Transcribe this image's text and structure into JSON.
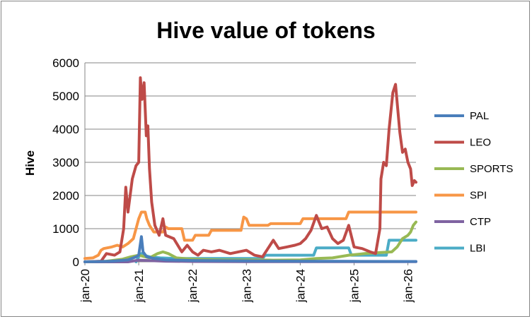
{
  "chart_data": {
    "type": "line",
    "title": "Hive value of tokens",
    "ylabel": "Hive",
    "xlabel": "",
    "ylim": [
      0,
      6000
    ],
    "y_ticks": [
      "0",
      "1000",
      "2000",
      "3000",
      "4000",
      "5000",
      "6000"
    ],
    "x_ticks": [
      "jan-20",
      "jan-21",
      "jan-22",
      "jan-23",
      "jan-24",
      "jan-25",
      "jan-26"
    ],
    "xlim": [
      2020.0,
      2026.15
    ],
    "grid": "horizontal",
    "legend_position": "right",
    "series": [
      {
        "name": "PAL",
        "color": "#4a7ebb",
        "points": [
          [
            2020.0,
            0
          ],
          [
            2020.5,
            20
          ],
          [
            2020.8,
            60
          ],
          [
            2020.95,
            150
          ],
          [
            2021.0,
            200
          ],
          [
            2021.05,
            760
          ],
          [
            2021.08,
            300
          ],
          [
            2021.15,
            150
          ],
          [
            2021.3,
            100
          ],
          [
            2021.5,
            60
          ],
          [
            2022.0,
            40
          ],
          [
            2023.0,
            30
          ],
          [
            2024.0,
            20
          ],
          [
            2025.0,
            15
          ],
          [
            2026.0,
            10
          ],
          [
            2026.15,
            10
          ]
        ]
      },
      {
        "name": "LEO",
        "color": "#be4b48",
        "points": [
          [
            2020.0,
            0
          ],
          [
            2020.3,
            20
          ],
          [
            2020.4,
            250
          ],
          [
            2020.55,
            200
          ],
          [
            2020.65,
            300
          ],
          [
            2020.72,
            1000
          ],
          [
            2020.76,
            2250
          ],
          [
            2020.8,
            1500
          ],
          [
            2020.88,
            2500
          ],
          [
            2020.95,
            2900
          ],
          [
            2021.0,
            3000
          ],
          [
            2021.03,
            5550
          ],
          [
            2021.06,
            4900
          ],
          [
            2021.1,
            5400
          ],
          [
            2021.14,
            3800
          ],
          [
            2021.17,
            4100
          ],
          [
            2021.2,
            2800
          ],
          [
            2021.24,
            1800
          ],
          [
            2021.3,
            1100
          ],
          [
            2021.38,
            800
          ],
          [
            2021.45,
            1300
          ],
          [
            2021.5,
            800
          ],
          [
            2021.65,
            700
          ],
          [
            2021.8,
            300
          ],
          [
            2021.85,
            400
          ],
          [
            2021.9,
            500
          ],
          [
            2022.0,
            300
          ],
          [
            2022.1,
            200
          ],
          [
            2022.2,
            350
          ],
          [
            2022.35,
            300
          ],
          [
            2022.5,
            350
          ],
          [
            2022.7,
            250
          ],
          [
            2022.85,
            300
          ],
          [
            2023.0,
            350
          ],
          [
            2023.15,
            200
          ],
          [
            2023.3,
            150
          ],
          [
            2023.4,
            400
          ],
          [
            2023.5,
            650
          ],
          [
            2023.6,
            400
          ],
          [
            2023.75,
            450
          ],
          [
            2023.9,
            500
          ],
          [
            2024.0,
            550
          ],
          [
            2024.1,
            700
          ],
          [
            2024.2,
            950
          ],
          [
            2024.3,
            1400
          ],
          [
            2024.4,
            1000
          ],
          [
            2024.5,
            1050
          ],
          [
            2024.6,
            700
          ],
          [
            2024.7,
            550
          ],
          [
            2024.8,
            650
          ],
          [
            2024.9,
            1100
          ],
          [
            2025.0,
            450
          ],
          [
            2025.15,
            400
          ],
          [
            2025.3,
            300
          ],
          [
            2025.4,
            250
          ],
          [
            2025.48,
            1000
          ],
          [
            2025.5,
            2500
          ],
          [
            2025.55,
            3000
          ],
          [
            2025.6,
            2900
          ],
          [
            2025.65,
            4000
          ],
          [
            2025.72,
            5100
          ],
          [
            2025.77,
            5350
          ],
          [
            2025.8,
            4800
          ],
          [
            2025.85,
            3900
          ],
          [
            2025.9,
            3300
          ],
          [
            2025.95,
            3400
          ],
          [
            2026.0,
            3000
          ],
          [
            2026.05,
            2800
          ],
          [
            2026.08,
            2300
          ],
          [
            2026.12,
            2450
          ],
          [
            2026.15,
            2400
          ]
        ]
      },
      {
        "name": "SPORTS",
        "color": "#98b954",
        "points": [
          [
            2020.0,
            0
          ],
          [
            2020.4,
            20
          ],
          [
            2020.7,
            80
          ],
          [
            2020.85,
            150
          ],
          [
            2021.0,
            200
          ],
          [
            2021.2,
            120
          ],
          [
            2021.35,
            250
          ],
          [
            2021.45,
            300
          ],
          [
            2021.55,
            250
          ],
          [
            2021.7,
            120
          ],
          [
            2022.0,
            80
          ],
          [
            2022.5,
            60
          ],
          [
            2023.0,
            60
          ],
          [
            2023.5,
            50
          ],
          [
            2024.0,
            60
          ],
          [
            2024.3,
            100
          ],
          [
            2024.6,
            120
          ],
          [
            2024.9,
            200
          ],
          [
            2025.2,
            250
          ],
          [
            2025.5,
            280
          ],
          [
            2025.7,
            300
          ],
          [
            2025.8,
            450
          ],
          [
            2025.9,
            700
          ],
          [
            2026.0,
            800
          ],
          [
            2026.05,
            900
          ],
          [
            2026.1,
            1100
          ],
          [
            2026.15,
            1200
          ]
        ]
      },
      {
        "name": "SPI",
        "color": "#f79646",
        "points": [
          [
            2020.0,
            100
          ],
          [
            2020.15,
            120
          ],
          [
            2020.25,
            200
          ],
          [
            2020.3,
            350
          ],
          [
            2020.35,
            400
          ],
          [
            2020.5,
            450
          ],
          [
            2020.6,
            500
          ],
          [
            2020.7,
            450
          ],
          [
            2020.8,
            550
          ],
          [
            2020.9,
            700
          ],
          [
            2020.95,
            1000
          ],
          [
            2021.0,
            1300
          ],
          [
            2021.05,
            1500
          ],
          [
            2021.12,
            1500
          ],
          [
            2021.15,
            1300
          ],
          [
            2021.2,
            1100
          ],
          [
            2021.28,
            900
          ],
          [
            2021.45,
            900
          ],
          [
            2021.5,
            1050
          ],
          [
            2021.55,
            1000
          ],
          [
            2021.8,
            1000
          ],
          [
            2021.85,
            650
          ],
          [
            2022.0,
            650
          ],
          [
            2022.05,
            800
          ],
          [
            2022.3,
            800
          ],
          [
            2022.35,
            950
          ],
          [
            2022.9,
            950
          ],
          [
            2022.95,
            1350
          ],
          [
            2023.0,
            1300
          ],
          [
            2023.05,
            1100
          ],
          [
            2023.4,
            1100
          ],
          [
            2023.45,
            1150
          ],
          [
            2024.0,
            1150
          ],
          [
            2024.05,
            1300
          ],
          [
            2024.55,
            1300
          ],
          [
            2024.85,
            1300
          ],
          [
            2024.9,
            1500
          ],
          [
            2026.15,
            1500
          ]
        ]
      },
      {
        "name": "CTP",
        "color": "#7f63a1",
        "points": [
          [
            2020.0,
            0
          ],
          [
            2020.8,
            0
          ],
          [
            2021.0,
            50
          ],
          [
            2021.5,
            20
          ],
          [
            2022.0,
            10
          ],
          [
            2023.0,
            5
          ],
          [
            2024.0,
            5
          ],
          [
            2025.0,
            5
          ],
          [
            2026.15,
            5
          ]
        ]
      },
      {
        "name": "LBI",
        "color": "#4bacc6",
        "points": [
          [
            2020.95,
            0
          ],
          [
            2021.0,
            150
          ],
          [
            2021.05,
            250
          ],
          [
            2021.1,
            200
          ],
          [
            2021.2,
            150
          ],
          [
            2021.4,
            120
          ],
          [
            2021.7,
            100
          ],
          [
            2022.0,
            100
          ],
          [
            2022.5,
            100
          ],
          [
            2023.0,
            100
          ],
          [
            2023.3,
            100
          ],
          [
            2023.35,
            200
          ],
          [
            2024.0,
            200
          ],
          [
            2024.25,
            200
          ],
          [
            2024.3,
            420
          ],
          [
            2024.9,
            420
          ],
          [
            2024.95,
            200
          ],
          [
            2025.6,
            200
          ],
          [
            2025.65,
            650
          ],
          [
            2026.15,
            650
          ]
        ]
      }
    ]
  }
}
